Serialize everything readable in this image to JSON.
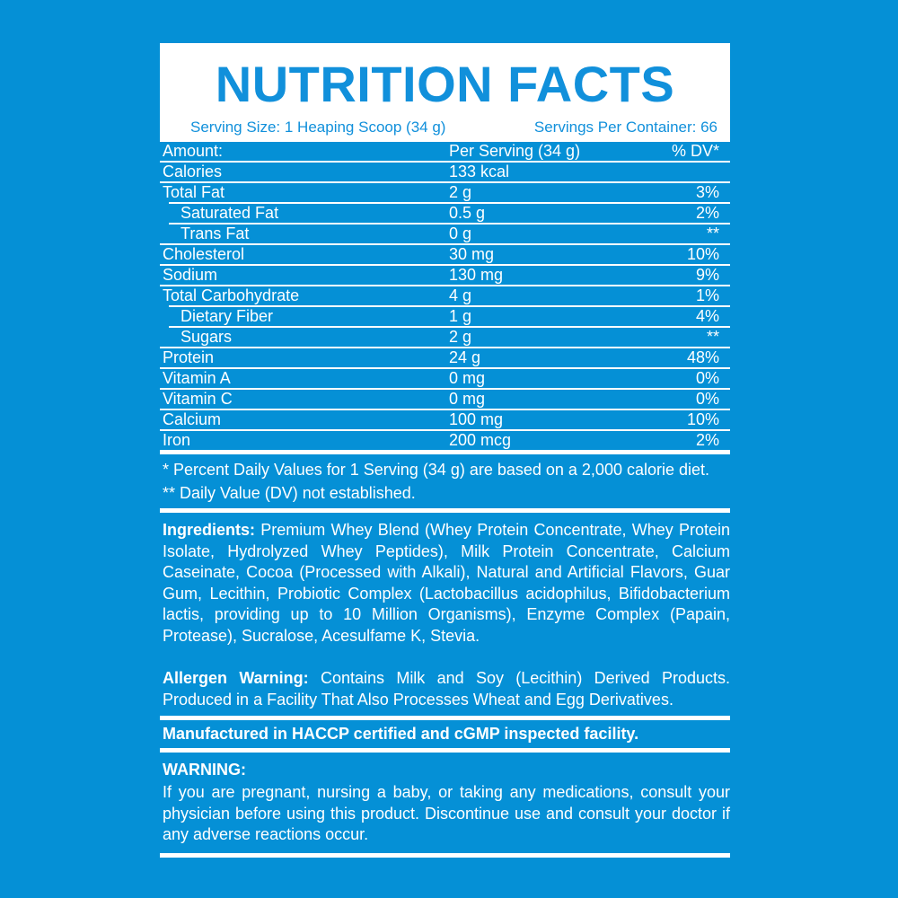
{
  "colors": {
    "background": "#0590D6",
    "accent_blue": "#1190DB",
    "label_text": "#FFFFFF",
    "panel_white": "#FFFFFF"
  },
  "header": {
    "title": "NUTRITION FACTS",
    "serving_size": "Serving Size: 1 Heaping Scoop (34 g)",
    "servings_per_container": "Servings Per Container: 66"
  },
  "table": {
    "columns": [
      "Amount:",
      "Per Serving (34 g)",
      "% DV*"
    ],
    "rows": [
      {
        "name": "Calories",
        "amount": "133 kcal",
        "dv": "",
        "indent": false
      },
      {
        "name": "Total Fat",
        "amount": "2 g",
        "dv": "3%",
        "indent": false
      },
      {
        "name": "Saturated Fat",
        "amount": "0.5 g",
        "dv": "2%",
        "indent": true
      },
      {
        "name": "Trans Fat",
        "amount": "0 g",
        "dv": "**",
        "indent": true
      },
      {
        "name": "Cholesterol",
        "amount": "30 mg",
        "dv": "10%",
        "indent": false
      },
      {
        "name": "Sodium",
        "amount": "130 mg",
        "dv": "9%",
        "indent": false
      },
      {
        "name": "Total Carbohydrate",
        "amount": "4 g",
        "dv": "1%",
        "indent": false
      },
      {
        "name": "Dietary Fiber",
        "amount": "1 g",
        "dv": "4%",
        "indent": true
      },
      {
        "name": "Sugars",
        "amount": "2 g",
        "dv": "**",
        "indent": true
      },
      {
        "name": "Protein",
        "amount": "24 g",
        "dv": "48%",
        "indent": false
      },
      {
        "name": "Vitamin A",
        "amount": "0 mg",
        "dv": "0%",
        "indent": false
      },
      {
        "name": "Vitamin C",
        "amount": "0 mg",
        "dv": "0%",
        "indent": false
      },
      {
        "name": "Calcium",
        "amount": "100 mg",
        "dv": "10%",
        "indent": false
      },
      {
        "name": "Iron",
        "amount": "200 mcg",
        "dv": "2%",
        "indent": false
      }
    ]
  },
  "footnotes": {
    "daily_values": "* Percent Daily Values for 1 Serving (34 g) are based on a 2,000 calorie diet.",
    "dv_not_established": "** Daily Value (DV) not established."
  },
  "ingredients": {
    "label": "Ingredients:",
    "text": "Premium Whey Blend (Whey Protein Concentrate, Whey Protein Isolate, Hydrolyzed Whey Peptides), Milk Protein Concentrate, Calcium Caseinate, Cocoa (Processed with Alkali), Natural and Artificial Flavors, Guar Gum, Lecithin, Probiotic Complex (Lactobacillus acidophilus, Bifidobacterium lactis, providing up to 10 Million Organisms), Enzyme Complex (Papain, Protease), Sucralose, Acesulfame K, Stevia."
  },
  "allergen": {
    "label": "Allergen Warning:",
    "text": "Contains Milk and Soy (Lecithin) Derived Products. Produced in a Facility That Also Processes Wheat and Egg Derivatives."
  },
  "manufactured": "Manufactured in HACCP certified and cGMP inspected facility.",
  "warning": {
    "label": "WARNING:",
    "text": "If you are pregnant, nursing a baby, or taking any medications, consult your physician before using this product. Discontinue use and consult your doctor if any adverse reactions occur."
  }
}
